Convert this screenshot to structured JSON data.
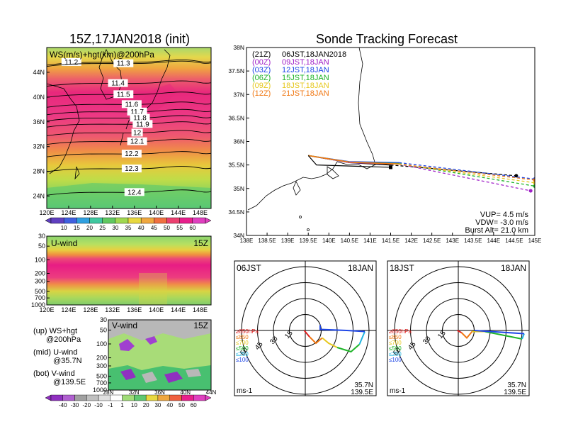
{
  "left_panel": {
    "title": "15Z,17JAN2018 (init)",
    "top_map": {
      "label": "WS(m/s)+hgt(km)@200hPa",
      "lat_ticks": [
        "44N",
        "40N",
        "36N",
        "32N",
        "28N",
        "24N"
      ],
      "lon_ticks": [
        "120E",
        "124E",
        "128E",
        "132E",
        "136E",
        "140E",
        "144E",
        "148E"
      ],
      "height_labels": [
        "11.2",
        "11.3",
        "11.4",
        "11.5",
        "11.6",
        "11.7",
        "11.8",
        "11.9",
        "12",
        "12.1",
        "12.2",
        "12.3",
        "12.4"
      ]
    },
    "colorbar_top": [
      "10",
      "15",
      "20",
      "25",
      "30",
      "35",
      "40",
      "45",
      "50",
      "55",
      "60"
    ],
    "uwind": {
      "label": "U-wind",
      "time": "15Z",
      "p_ticks": [
        "30",
        "50",
        "100",
        "200",
        "300",
        "500",
        "700",
        "1000"
      ],
      "lon_ticks": [
        "120E",
        "124E",
        "128E",
        "132E",
        "136E",
        "140E",
        "144E",
        "148E"
      ]
    },
    "vwind": {
      "label": "V-wind",
      "time": "15Z",
      "p_ticks": [
        "30",
        "50",
        "100",
        "200",
        "300",
        "500",
        "700",
        "1000"
      ],
      "lat_ticks": [
        "28N",
        "32N",
        "36N",
        "40N",
        "44N"
      ]
    },
    "colorbar_bottom": [
      "-40",
      "-30",
      "-20",
      "-10",
      "-1",
      "1",
      "10",
      "20",
      "30",
      "40",
      "50",
      "60"
    ],
    "notes": {
      "up1": "(up) WS+hgt",
      "up2": "@200hPa",
      "mid1": "(mid) U-wind",
      "mid2": "@35.7N",
      "bot1": "(bot) V-wind",
      "bot2": "@139.5E"
    }
  },
  "right_panel": {
    "title": "Sonde Tracking Forecast",
    "legend": [
      {
        "code": "(21Z)",
        "time": "06JST,18JAN2018",
        "color": "#000000"
      },
      {
        "code": "(00Z)",
        "time": "09JST,18JAN",
        "color": "#a020c8"
      },
      {
        "code": "(03Z)",
        "time": "12JST,18JAN",
        "color": "#1e46e6"
      },
      {
        "code": "(06Z)",
        "time": "15JST,18JAN",
        "color": "#1eb428"
      },
      {
        "code": "(09Z)",
        "time": "18JST,18JAN",
        "color": "#e6c81e"
      },
      {
        "code": "(12Z)",
        "time": "21JST,18JAN",
        "color": "#f07814"
      }
    ],
    "params": {
      "vup": "VUP=  4.5 m/s",
      "vdw": "VDW= -3.0 m/s",
      "burst": "Burst Alt= 21.0 km"
    },
    "lat_ticks": [
      "38N",
      "37.5N",
      "37N",
      "36.5N",
      "36N",
      "35.5N",
      "35N",
      "34.5N",
      "34N"
    ],
    "lon_ticks": [
      "138E",
      "138.5E",
      "139E",
      "139.5E",
      "140E",
      "140.5E",
      "141E",
      "141.5E",
      "142E",
      "142.5E",
      "143E",
      "143.5E",
      "144E",
      "144.5E",
      "145E"
    ]
  },
  "hodographs": [
    {
      "time": "06JST",
      "date": "18JAN",
      "lat": "35.7N",
      "lon": "139.5E",
      "unit": "ms-1"
    },
    {
      "time": "18JST",
      "date": "18JAN",
      "lat": "35.7N",
      "lon": "139.5E",
      "unit": "ms-1"
    }
  ],
  "hodo_legend": [
    "≥850hPa",
    "≤850",
    "≤700",
    "≤500",
    "≤250",
    "≤100"
  ],
  "hodo_legend_colors": [
    "#e02020",
    "#f07814",
    "#e6c81e",
    "#1eb428",
    "#20b4e0",
    "#1e46e6"
  ],
  "hodo_ring_labels": [
    "15",
    "30",
    "45",
    "60"
  ],
  "chart_data": [
    {
      "type": "heatmap",
      "title": "15Z,17JAN2018 (init)",
      "subtitle": "WS(m/s)+hgt(km)@200hPa",
      "xlim": [
        120,
        150
      ],
      "ylim": [
        22,
        48
      ],
      "contours": [
        {
          "value": "11.2",
          "lat": 45.6
        },
        {
          "value": "11.3",
          "lat": 45.4
        },
        {
          "value": "11.4",
          "lat": 42.2
        },
        {
          "value": "11.5",
          "lat": 40.4
        },
        {
          "value": "11.6",
          "lat": 38.8
        },
        {
          "value": "11.7",
          "lat": 37.6
        },
        {
          "value": "11.8",
          "lat": 36.6
        },
        {
          "value": "11.9",
          "lat": 35.6
        },
        {
          "value": "12",
          "lat": 34.2
        },
        {
          "value": "12.1",
          "lat": 32.8
        },
        {
          "value": "12.2",
          "lat": 30.8
        },
        {
          "value": "12.3",
          "lat": 28.4
        },
        {
          "value": "12.4",
          "lat": 24.6
        }
      ]
    },
    {
      "type": "heatmap",
      "title": "U-wind",
      "xlim": [
        120,
        150
      ],
      "ylim": [
        1000,
        30
      ],
      "jet_core_hPa": [
        150,
        300
      ]
    },
    {
      "type": "heatmap",
      "title": "V-wind",
      "xlim": [
        28,
        44
      ],
      "ylim": [
        1000,
        30
      ]
    },
    {
      "type": "line",
      "title": "Sonde Tracking Forecast",
      "xlim": [
        138,
        145
      ],
      "ylim": [
        34,
        38
      ],
      "series": [
        {
          "name": "(21Z) 06JST,18JAN2018",
          "points": [
            [
              139.5,
              35.7
            ],
            [
              140.5,
              35.55
            ],
            [
              141.5,
              35.5
            ],
            [
              144.55,
              35.27
            ]
          ]
        },
        {
          "name": "(00Z) 09JST,18JAN",
          "points": [
            [
              139.5,
              35.7
            ],
            [
              140.5,
              35.55
            ],
            [
              141.7,
              35.52
            ],
            [
              144.9,
              34.95
            ]
          ]
        },
        {
          "name": "(03Z) 12JST,18JAN",
          "points": [
            [
              139.5,
              35.7
            ],
            [
              140.5,
              35.57
            ],
            [
              141.7,
              35.55
            ],
            [
              145.0,
              35.2
            ]
          ]
        },
        {
          "name": "(06Z) 15JST,18JAN",
          "points": [
            [
              139.5,
              35.7
            ],
            [
              140.5,
              35.56
            ],
            [
              141.7,
              35.53
            ],
            [
              145.0,
              35.05
            ]
          ]
        },
        {
          "name": "(09Z) 18JST,18JAN",
          "points": [
            [
              139.5,
              35.7
            ],
            [
              140.5,
              35.56
            ],
            [
              141.7,
              35.52
            ],
            [
              145.0,
              35.12
            ]
          ]
        },
        {
          "name": "(12Z) 21JST,18JAN",
          "points": [
            [
              139.5,
              35.7
            ],
            [
              140.5,
              35.56
            ],
            [
              141.7,
              35.52
            ],
            [
              145.0,
              35.18
            ]
          ]
        }
      ]
    },
    {
      "type": "line",
      "title": "06JST 18JAN",
      "xlim": [
        -60,
        60
      ],
      "ylim": [
        -60,
        60
      ],
      "series": [
        {
          "name": "≥850hPa",
          "points": [
            [
              -1,
              0
            ],
            [
              4,
              -6
            ]
          ]
        },
        {
          "name": "≤850",
          "points": [
            [
              4,
              -6
            ],
            [
              10,
              -12
            ],
            [
              16,
              -7
            ]
          ]
        },
        {
          "name": "≤700",
          "points": [
            [
              16,
              -7
            ],
            [
              22,
              -12
            ],
            [
              30,
              -16
            ]
          ]
        },
        {
          "name": "≤500",
          "points": [
            [
              30,
              -16
            ],
            [
              43,
              -20
            ],
            [
              51,
              -13
            ]
          ]
        },
        {
          "name": "≤250",
          "points": [
            [
              51,
              -13
            ],
            [
              56,
              -1
            ]
          ]
        },
        {
          "name": "≤100",
          "points": [
            [
              56,
              -1
            ],
            [
              39,
              0
            ],
            [
              14,
              1
            ],
            [
              14,
              5
            ]
          ]
        }
      ]
    },
    {
      "type": "line",
      "title": "18JST 18JAN",
      "xlim": [
        -60,
        60
      ],
      "ylim": [
        -60,
        60
      ],
      "series": [
        {
          "name": "≥850hPa",
          "points": [
            [
              -1,
              0
            ],
            [
              3,
              -2
            ]
          ]
        },
        {
          "name": "≤850",
          "points": [
            [
              3,
              -2
            ],
            [
              8,
              -7
            ],
            [
              13,
              -1
            ]
          ]
        },
        {
          "name": "≤700",
          "points": [
            [
              13,
              -1
            ],
            [
              25,
              -1
            ]
          ]
        },
        {
          "name": "≤500",
          "points": [
            [
              25,
              -1
            ],
            [
              50,
              -6
            ],
            [
              60,
              -8
            ]
          ]
        },
        {
          "name": "≤250",
          "points": [
            [
              60,
              -8
            ],
            [
              62,
              -3
            ]
          ]
        },
        {
          "name": "≤100",
          "points": [
            [
              62,
              -3
            ],
            [
              30,
              -1
            ],
            [
              15,
              0
            ]
          ]
        }
      ]
    }
  ]
}
